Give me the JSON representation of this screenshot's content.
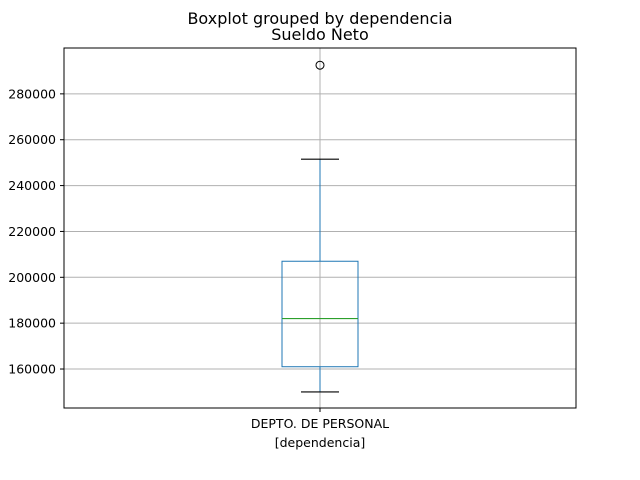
{
  "chart_data": {
    "type": "box",
    "suptitle": "Boxplot grouped by dependencia",
    "title": "Sueldo Neto",
    "xlabel": "[dependencia]",
    "categories": [
      "DEPTO. DE PERSONAL"
    ],
    "ylim": [
      143000,
      300000
    ],
    "yticks": [
      160000,
      180000,
      200000,
      220000,
      240000,
      260000,
      280000
    ],
    "grid": true,
    "boxes": [
      {
        "category": "DEPTO. DE PERSONAL",
        "whisker_low": 150000,
        "q1": 161000,
        "median": 182000,
        "q3": 207000,
        "whisker_high": 251500,
        "outliers": [
          292500
        ]
      }
    ],
    "colors": {
      "box": "#1f77b4",
      "median": "#2ca02c",
      "cap": "#000000",
      "grid": "#b0b0b0",
      "outlier": "#000000"
    }
  }
}
